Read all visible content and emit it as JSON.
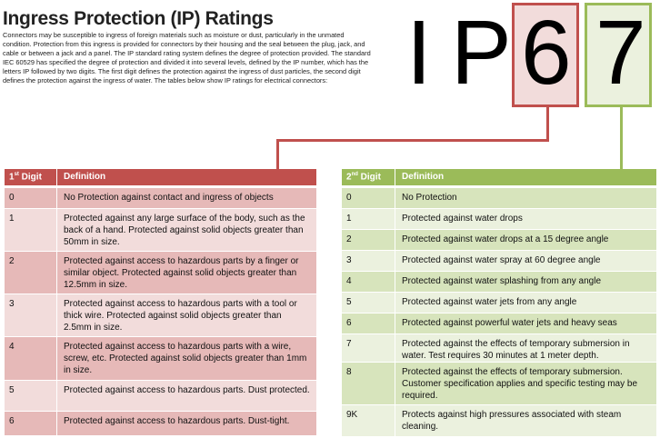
{
  "title": "Ingress Protection (IP) Ratings",
  "intro": "Connectors may be susceptible to ingress of foreign materials such as moisture or dust, particularly in the unmated condition.  Protection from this ingress is provided for connectors by their housing and the seal between the plug, jack, and cable or between a jack and a panel. The IP standard rating system defines the degree of protection provided. The standard IEC 60529 has specified the degree of protection and divided it into several levels, defined by the IP number, which has the letters IP followed by two digits.  The first digit defines the protection against the ingress of dust particles, the second digit defines the protection against the ingress of water. The tables below show IP ratings for electrical connectors:",
  "code": {
    "i": "I",
    "p": "P",
    "d1": "6",
    "d2": "7"
  },
  "colors": {
    "red": "#c0504d",
    "red_box": "#f2dcdb",
    "green": "#9bbb59",
    "green_box": "#ebf1de"
  },
  "table1": {
    "h1": "1",
    "h1_sup": "st",
    "h1_rest": " Digit",
    "h2": "Definition",
    "rows": [
      {
        "d": "0",
        "t": "No Protection against contact and ingress of objects"
      },
      {
        "d": "1",
        "t": "Protected against any large surface of the body, such as the back of a hand.  Protected against solid objects greater than 50mm in size."
      },
      {
        "d": "2",
        "t": "Protected against access to hazardous parts by a finger or similar object.  Protected against solid objects greater than 12.5mm in size."
      },
      {
        "d": "3",
        "t": "Protected against access to hazardous parts with a tool or thick wire.  Protected against solid objects greater than 2.5mm in size."
      },
      {
        "d": "4",
        "t": "Protected against access to hazardous parts with a wire, screw, etc.  Protected against solid objects greater than 1mm in size."
      },
      {
        "d": "5",
        "t": "Protected against access to hazardous parts.  Dust protected."
      },
      {
        "d": "6",
        "t": "Protected against access to hazardous parts.  Dust-tight."
      }
    ]
  },
  "table2": {
    "h1": "2",
    "h1_sup": "nd",
    "h1_rest": " Digit",
    "h2": "Definition",
    "rows": [
      {
        "d": "0",
        "t": "No Protection"
      },
      {
        "d": "1",
        "t": "Protected against water drops"
      },
      {
        "d": "2",
        "t": "Protected against water drops at a 15 degree angle"
      },
      {
        "d": "3",
        "t": "Protected against water spray at 60 degree angle"
      },
      {
        "d": "4",
        "t": "Protected against water splashing from any angle"
      },
      {
        "d": "5",
        "t": "Protected against water jets from any angle"
      },
      {
        "d": "6",
        "t": "Protected against powerful water jets and heavy seas"
      },
      {
        "d": "7",
        "t": "Protected against the effects of temporary submersion in water.  Test requires 30 minutes at 1 meter depth."
      },
      {
        "d": "8",
        "t": "Protected against the effects of temporary submersion.  Customer specification applies and specific testing may be required."
      },
      {
        "d": "9K",
        "t": "Protects against high pressures associated with steam cleaning."
      }
    ]
  }
}
